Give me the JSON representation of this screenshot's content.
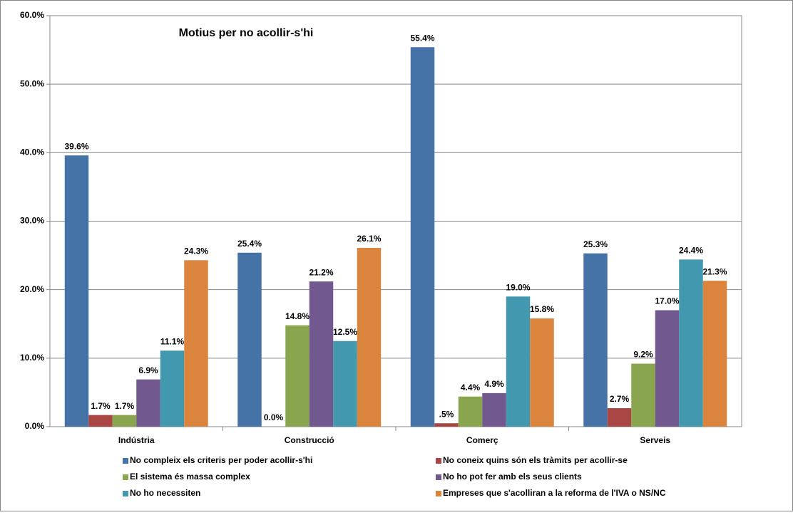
{
  "chart_data": {
    "type": "bar",
    "title": "Motius per no acollir-s'hi",
    "categories": [
      "Indústria",
      "Construcció",
      "Comerç",
      "Serveis"
    ],
    "series": [
      {
        "name": "No compleix els criteris per poder acollir-s'hi",
        "color": "#4572a7",
        "values": [
          39.6,
          25.4,
          55.4,
          25.3
        ],
        "value_labels": [
          "39.6%",
          "25.4%",
          "55.4%",
          "25.3%"
        ]
      },
      {
        "name": "No coneix quins són els tràmits per acollir-se",
        "color": "#aa4643",
        "values": [
          1.7,
          0.0,
          0.5,
          2.7
        ],
        "value_labels": [
          "1.7%",
          "0.0%",
          ".5%",
          "2.7%"
        ]
      },
      {
        "name": "El sistema és massa complex",
        "color": "#89a54e",
        "values": [
          1.7,
          14.8,
          4.4,
          9.2
        ],
        "value_labels": [
          "1.7%",
          "14.8%",
          "4.4%",
          "9.2%"
        ]
      },
      {
        "name": "No ho pot fer amb els seus clients",
        "color": "#71588f",
        "values": [
          6.9,
          21.2,
          4.9,
          17.0
        ],
        "value_labels": [
          "6.9%",
          "21.2%",
          "4.9%",
          "17.0%"
        ]
      },
      {
        "name": "No ho necessiten",
        "color": "#4198af",
        "values": [
          11.1,
          12.5,
          19.0,
          24.4
        ],
        "value_labels": [
          "11.1%",
          "12.5%",
          "19.0%",
          "24.4%"
        ]
      },
      {
        "name": "Empreses que s'acolliran  a la reforma de l'IVA o NS/NC",
        "color": "#db843d",
        "values": [
          24.3,
          26.1,
          15.8,
          21.3
        ],
        "value_labels": [
          "24.3%",
          "26.1%",
          "15.8%",
          "21.3%"
        ]
      }
    ],
    "ylim": [
      0,
      60
    ],
    "yticks": [
      {
        "value": 0,
        "label": "0.0%"
      },
      {
        "value": 10,
        "label": "10.0%"
      },
      {
        "value": 20,
        "label": "20.0%"
      },
      {
        "value": 30,
        "label": "30.0%"
      },
      {
        "value": 40,
        "label": "40.0%"
      },
      {
        "value": 50,
        "label": "50.0%"
      },
      {
        "value": 60,
        "label": "60.0%"
      }
    ],
    "grid": true
  }
}
